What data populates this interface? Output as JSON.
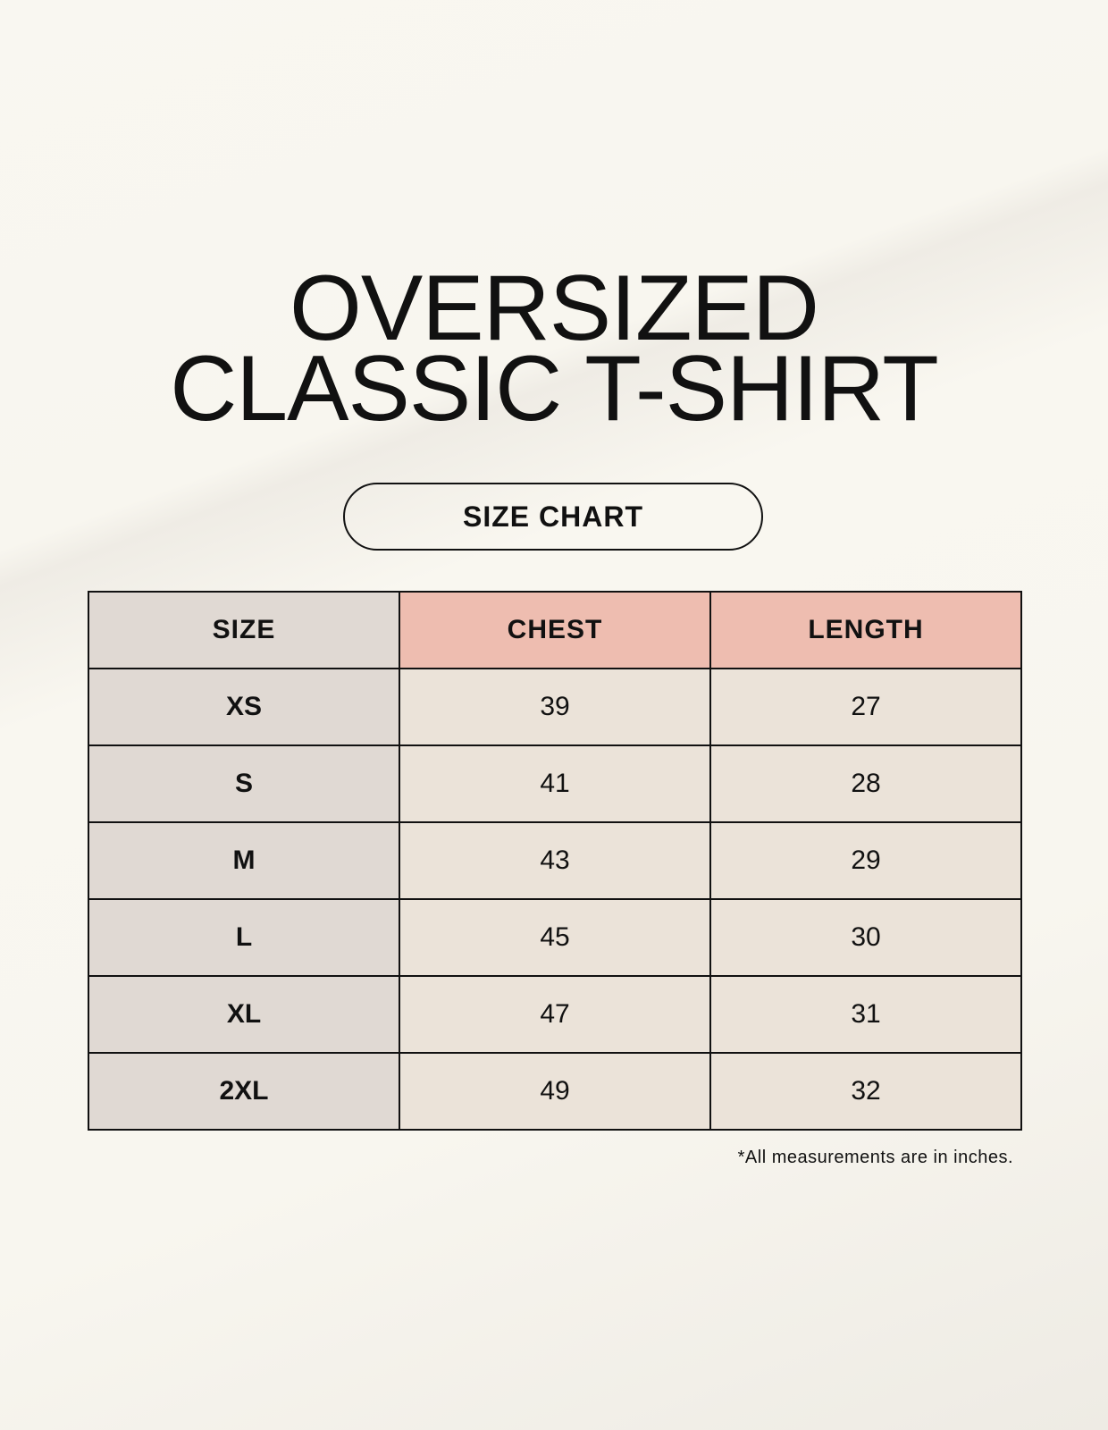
{
  "title": {
    "line1": "OVERSIZED",
    "line2": "CLASSIC T-SHIRT"
  },
  "badge": "SIZE CHART",
  "table": {
    "headers": [
      "SIZE",
      "CHEST",
      "LENGTH"
    ],
    "rows": [
      [
        "XS",
        "39",
        "27"
      ],
      [
        "S",
        "41",
        "28"
      ],
      [
        "M",
        "43",
        "29"
      ],
      [
        "L",
        "45",
        "30"
      ],
      [
        "XL",
        "47",
        "31"
      ],
      [
        "2XL",
        "49",
        "32"
      ]
    ]
  },
  "note": "*All measurements are in inches.",
  "colors": {
    "header_accent": "#eebdb0",
    "size_column": "#e0d9d3",
    "cells": "#ebe3d9"
  }
}
